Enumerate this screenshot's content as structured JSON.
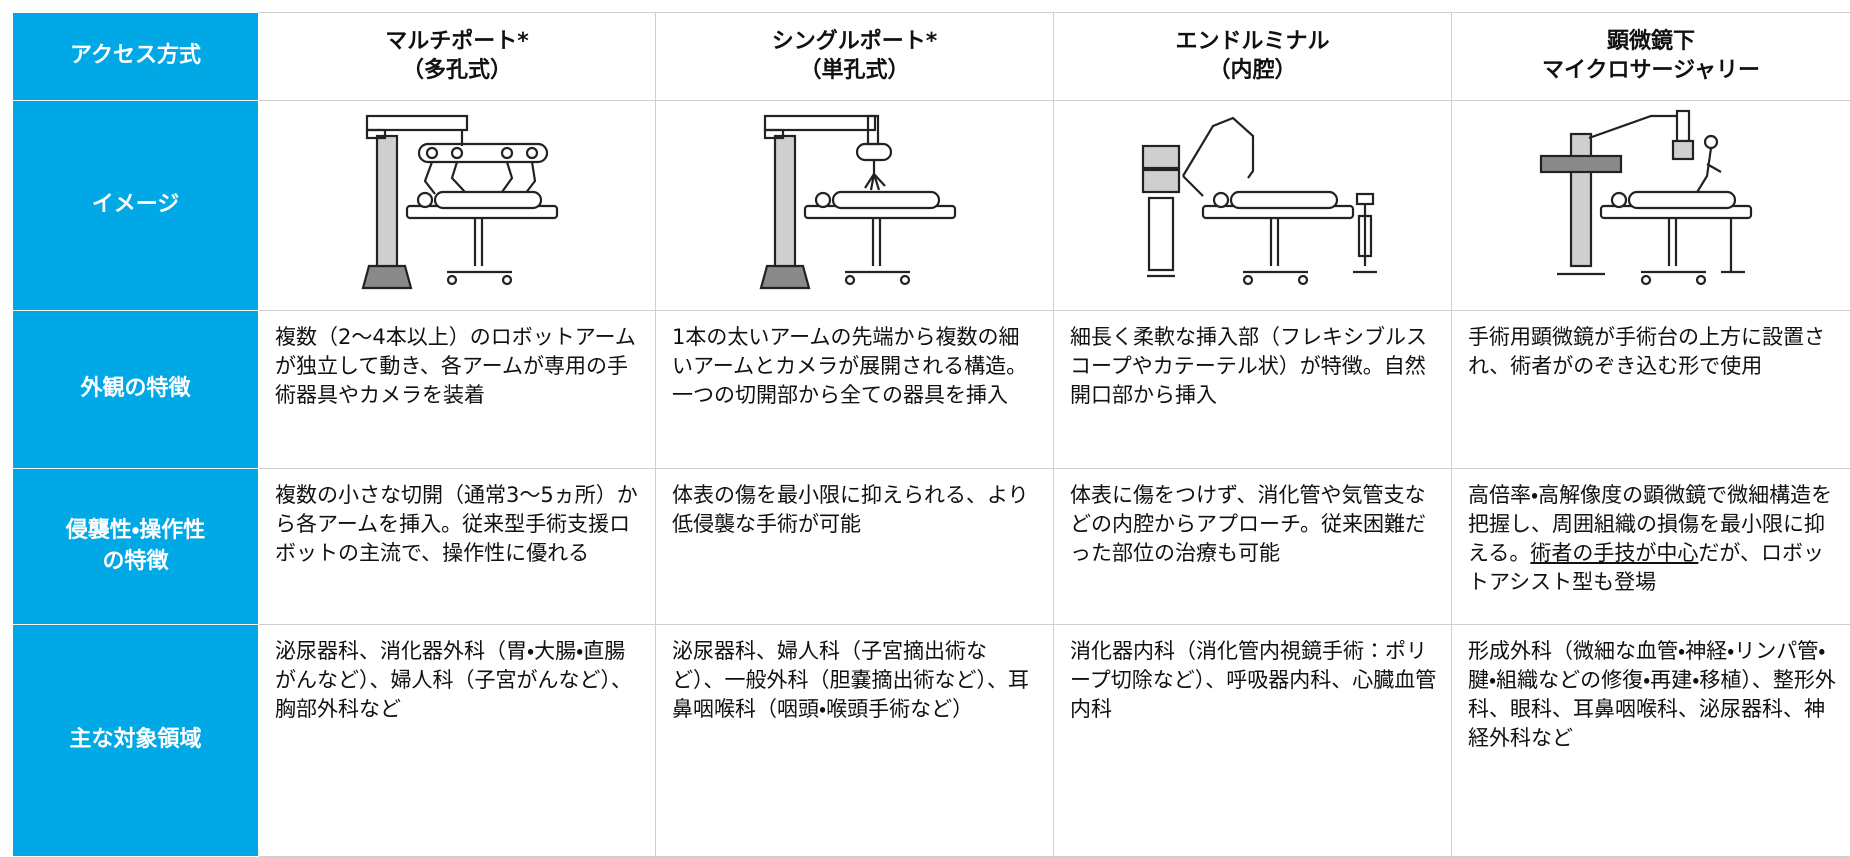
{
  "table": {
    "header": {
      "label": "アクセス方式",
      "columns": [
        [
          "マルチポート*",
          "（多孔式）"
        ],
        [
          "シングルポート*",
          "（単孔式）"
        ],
        [
          "エンドルミナル",
          "（内腔）"
        ],
        [
          "顕微鏡下",
          "マイクロサージャリー"
        ]
      ]
    },
    "rows": [
      {
        "label": [
          "イメージ"
        ]
      },
      {
        "label": [
          "外観の特徴"
        ],
        "cells": [
          "複数（2～4本以上）のロボットアームが独立して動き、各アームが専用の手術器具やカメラを装着",
          "1本の太いアームの先端から複数の細いアームとカメラが展開される構造。一つの切開部から全ての器具を挿入",
          "細長く柔軟な挿入部（フレキシブルスコープやカテーテル状）が特徴。自然開口部から挿入",
          "手術用顕微鏡が手術台の上方に設置され、術者がのぞき込む形で使用"
        ]
      },
      {
        "label": [
          "侵襲性・操作性",
          "の特徴"
        ],
        "cells": [
          "複数の小さな切開（通常3～5ヵ所）から各アームを挿入。従来型手術支援ロボットの主流で、操作性に優れる",
          "体表の傷を最小限に抑えられる、より低侵襲な手術が可能",
          "体表に傷をつけず、消化管や気管支などの内腔からアプローチ。従来困難だった部位の治療も可能",
          {
            "text_before": "高倍率・高解像度の顕微鏡で微細構造を把握し、周囲組織の損傷を最小限に抑える。",
            "underlined": "術者の手技が中心",
            "text_after": "だが、ロボットアシスト型も登場"
          }
        ]
      },
      {
        "label": [
          "主な対象領域"
        ],
        "cells": [
          "泌尿器科、消化器外科（胃・大腸・直腸がんなど）、婦人科（子宮がんなど）、胸部外科など",
          "泌尿器科、婦人科（子宮摘出術など）、一般外科（胆嚢摘出術など）、耳鼻咽喉科（咽頭・喉頭手術など）",
          "消化器内科（消化管内視鏡手術：ポリープ切除など）、呼吸器内科、心臓血管内科",
          "形成外科（微細な血管・神経・リンパ管・腱・組織などの修復・再建・移植）、整形外科、眼科、耳鼻咽喉科、泌尿器科、神経外科など"
        ]
      }
    ]
  }
}
